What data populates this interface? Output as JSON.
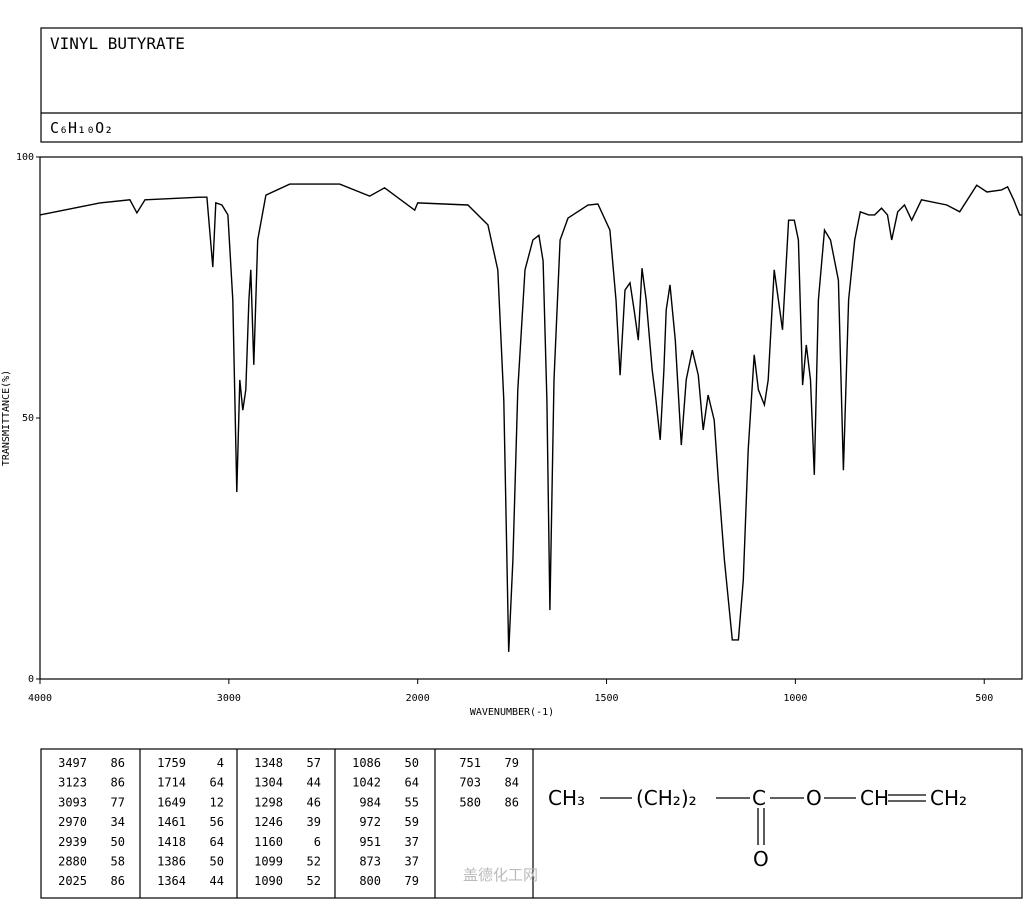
{
  "chart_data": {
    "type": "line",
    "title": "VINYL BUTYRATE",
    "formula": "C₆H₁₀O₂",
    "xlabel": "WAVENUMBER(-1)",
    "ylabel": "TRANSMITTANCE(%)",
    "xlim": [
      4000,
      400
    ],
    "x_scale_break": 2000,
    "x_scale_break_factor": 2,
    "xticks": [
      4000,
      3000,
      2000,
      1500,
      1000,
      500
    ],
    "ylim": [
      0,
      100
    ],
    "yticks": [
      0,
      50,
      100
    ],
    "color": "#000000",
    "x": [
      4000,
      3683,
      3524,
      3487,
      3444,
      3153,
      3116,
      3085,
      3069,
      3037,
      3005,
      2979,
      2958,
      2942,
      2926,
      2910,
      2894,
      2884,
      2868,
      2847,
      2804,
      2677,
      2413,
      2254,
      2175,
      2016,
      2000,
      1867,
      1814,
      1788,
      1772,
      1759,
      1748,
      1735,
      1716,
      1695,
      1679,
      1668,
      1658,
      1650,
      1639,
      1623,
      1602,
      1549,
      1523,
      1491,
      1475,
      1464,
      1451,
      1438,
      1427,
      1416,
      1406,
      1395,
      1379,
      1369,
      1358,
      1348,
      1342,
      1332,
      1318,
      1302,
      1289,
      1273,
      1257,
      1244,
      1231,
      1215,
      1204,
      1188,
      1167,
      1151,
      1138,
      1125,
      1109,
      1098,
      1082,
      1072,
      1056,
      1045,
      1034,
      1018,
      1003,
      992,
      981,
      971,
      960,
      950,
      939,
      923,
      907,
      886,
      873,
      859,
      843,
      828,
      806,
      790,
      772,
      756,
      745,
      729,
      711,
      692,
      666,
      599,
      565,
      520,
      493,
      454,
      438,
      422,
      406,
      400
    ],
    "values": [
      88.9,
      91.2,
      91.8,
      89.3,
      91.8,
      92.3,
      92.3,
      78.9,
      91.2,
      90.8,
      88.9,
      72.6,
      35.8,
      57.3,
      51.5,
      55.4,
      72.6,
      78.4,
      60.2,
      84.1,
      92.7,
      94.8,
      94.8,
      92.5,
      94.1,
      89.8,
      91.2,
      90.8,
      87.0,
      78.4,
      53.4,
      5.2,
      22.8,
      55.4,
      78.4,
      84.1,
      85.0,
      80.1,
      53.4,
      13.2,
      57.3,
      84.1,
      88.3,
      90.8,
      91.0,
      86.0,
      72.6,
      58.2,
      74.5,
      75.9,
      70.7,
      64.9,
      78.7,
      72.6,
      59.2,
      53.4,
      45.8,
      59.2,
      70.7,
      75.5,
      64.9,
      44.8,
      57.3,
      63.0,
      58.2,
      47.7,
      54.4,
      49.6,
      38.1,
      22.8,
      7.5,
      7.5,
      19.0,
      43.9,
      62.1,
      55.4,
      52.5,
      57.3,
      78.4,
      72.6,
      66.9,
      87.9,
      87.9,
      84.1,
      56.3,
      64.0,
      57.3,
      39.1,
      72.6,
      86.0,
      84.1,
      76.4,
      40.0,
      72.6,
      84.1,
      89.5,
      88.9,
      88.9,
      90.2,
      88.9,
      84.1,
      89.5,
      90.8,
      87.9,
      91.8,
      90.8,
      89.5,
      94.6,
      93.3,
      93.7,
      94.3,
      91.8,
      88.9,
      88.9
    ],
    "peak_table": [
      [
        [
          3497,
          86
        ],
        [
          3123,
          86
        ],
        [
          3093,
          77
        ],
        [
          2970,
          34
        ],
        [
          2939,
          50
        ],
        [
          2880,
          58
        ],
        [
          2025,
          86
        ]
      ],
      [
        [
          1759,
          4
        ],
        [
          1714,
          64
        ],
        [
          1649,
          12
        ],
        [
          1461,
          56
        ],
        [
          1418,
          64
        ],
        [
          1386,
          50
        ],
        [
          1364,
          44
        ]
      ],
      [
        [
          1348,
          57
        ],
        [
          1304,
          44
        ],
        [
          1298,
          46
        ],
        [
          1246,
          39
        ],
        [
          1160,
          6
        ],
        [
          1099,
          52
        ],
        [
          1090,
          52
        ]
      ],
      [
        [
          1086,
          50
        ],
        [
          1042,
          64
        ],
        [
          984,
          55
        ],
        [
          972,
          59
        ],
        [
          951,
          37
        ],
        [
          873,
          37
        ],
        [
          800,
          79
        ]
      ],
      [
        [
          751,
          79
        ],
        [
          703,
          84
        ],
        [
          580,
          86
        ]
      ]
    ],
    "structure": {
      "ch3": "CH₃",
      "ch2n": "(CH₂)₂",
      "c": "C",
      "o_ester": "O",
      "ch": "CH",
      "ch2": "CH₂",
      "o_carbonyl": "O"
    },
    "watermark": "盖德化工网"
  }
}
